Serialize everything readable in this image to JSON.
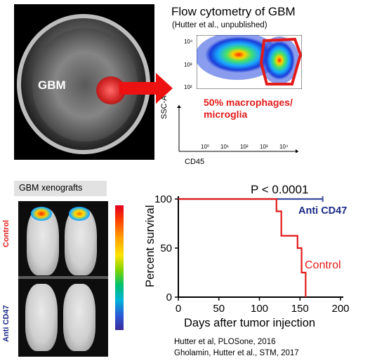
{
  "mri": {
    "tumor_label": "GBM"
  },
  "flow": {
    "title": "Flow cytometry of GBM",
    "subtitle": "(Hutter et al., unpublished)",
    "y_ticks": [
      "10⁴",
      "10³",
      "10²"
    ],
    "x_ticks": [
      "10⁰",
      "10¹",
      "10²",
      "10³",
      "10⁴"
    ],
    "ylabel": "SSC-A",
    "xlabel": "CD45",
    "annotation_line1": "50% macrophages/",
    "annotation_line2": "microglia"
  },
  "xenografts": {
    "title": "GBM xenografts",
    "group_control": "Control",
    "group_treated": "Anti CD47"
  },
  "chart_data": {
    "type": "line",
    "xlabel": "Days after tumor injection",
    "ylabel": "Percent survival",
    "xlim": [
      0,
      200
    ],
    "ylim": [
      0,
      100
    ],
    "x_ticks": [
      "0",
      "50",
      "100",
      "150",
      "200"
    ],
    "y_ticks": [
      "0",
      "50",
      "100"
    ],
    "annotation_p": "P < 0.0001",
    "series": [
      {
        "name": "Anti CD47",
        "color": "#3b4c9c",
        "x": [
          0,
          178
        ],
        "y": [
          100,
          100
        ],
        "censored_at": [
          178
        ]
      },
      {
        "name": "Control",
        "color": "#e21b1b",
        "x": [
          0,
          121,
          121,
          127,
          127,
          147,
          147,
          152,
          152,
          157,
          157
        ],
        "y": [
          100,
          100,
          87.5,
          87.5,
          62.5,
          62.5,
          50,
          50,
          25,
          25,
          0
        ]
      }
    ]
  },
  "citations": {
    "line1": "Hutter et al, PLOSone, 2016",
    "line2": "Gholamin, Hutter et al., STM, 2017"
  },
  "colors": {
    "red_accent": "#e21b1b",
    "navy": "#1a2a84",
    "colorbar_top": "#e0001e",
    "colorbar_bottom": "#3b2a9a"
  }
}
